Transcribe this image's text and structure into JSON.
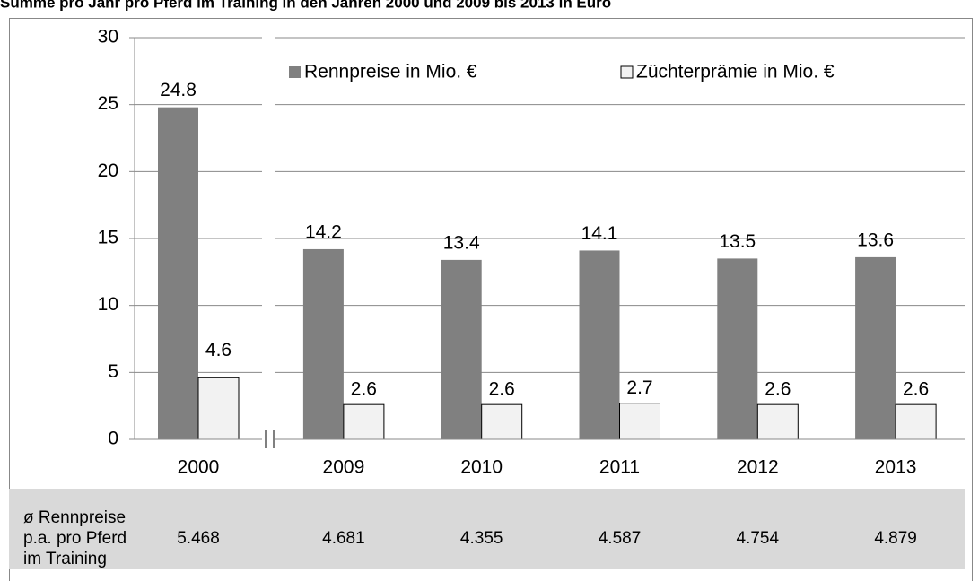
{
  "chart_data": {
    "type": "bar",
    "title": "Summe pro Jahr pro Pferd im Training in den Jahren 2000 und 2009 bis 2013 in Euro",
    "categories": [
      "2000",
      "2009",
      "2010",
      "2011",
      "2012",
      "2013"
    ],
    "series": [
      {
        "name": "Rennpreise in Mio. €",
        "color": "#808080",
        "values": [
          24.8,
          14.2,
          13.4,
          14.1,
          13.5,
          13.6
        ]
      },
      {
        "name": "Züchterprämie in Mio. €",
        "color": "#f2f2f2",
        "values": [
          4.6,
          2.6,
          2.6,
          2.7,
          2.6,
          2.6
        ]
      }
    ],
    "ylim": [
      0,
      30
    ],
    "yticks": [
      0,
      5,
      10,
      15,
      20,
      25,
      30
    ],
    "grid": true,
    "legend": "top",
    "table": {
      "label": [
        "ø Rennpreise",
        "p.a. pro Pferd",
        "im Training"
      ],
      "values": [
        "5.468",
        "4.681",
        "4.355",
        "4.587",
        "4.754",
        "4.879"
      ]
    }
  }
}
